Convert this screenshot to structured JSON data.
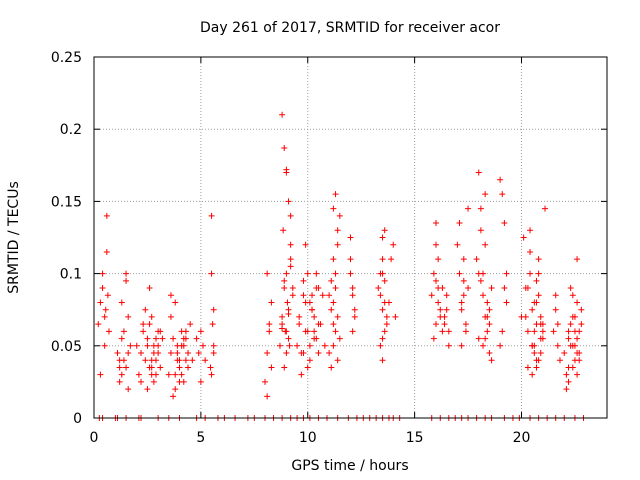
{
  "chart_data": {
    "type": "scatter",
    "title": "Day 261 of 2017, SRMTID for receiver acor",
    "xlabel": "GPS time / hours",
    "ylabel": "SRMTID / TECUs",
    "xlim": [
      0,
      24
    ],
    "ylim": [
      0,
      0.25
    ],
    "xticks": [
      0,
      5,
      10,
      15,
      20
    ],
    "xtick_labels": [
      "0",
      "5",
      "10",
      "15",
      "20"
    ],
    "yticks": [
      0,
      0.05,
      0.1,
      0.15,
      0.2,
      0.25
    ],
    "ytick_labels": [
      "0",
      "0.05",
      "0.1",
      "0.15",
      "0.2",
      "0.25"
    ],
    "grid": true,
    "marker": "+",
    "color": "#ff0000",
    "series": [
      {
        "name": "SRMTID",
        "x": [
          0.2,
          0.3,
          0.4,
          0.5,
          0.5,
          0.6,
          0.6,
          0.7,
          0.3,
          0.4,
          0.55,
          0.65,
          1.1,
          1.2,
          1.3,
          1.3,
          1.4,
          1.5,
          1.6,
          1.7,
          1.2,
          1.4,
          1.5,
          1.6,
          1.3,
          1.5,
          1.2,
          1.6,
          2.0,
          2.1,
          2.2,
          2.3,
          2.2,
          2.4,
          2.5,
          2.6,
          2.7,
          2.8,
          2.9,
          3.0,
          3.1,
          2.5,
          2.7,
          2.9,
          3.1,
          2.6,
          2.8,
          3.0,
          2.4,
          2.6,
          2.8,
          3.0,
          2.7,
          2.9,
          2.5,
          3.2,
          2.3,
          2.7,
          3.5,
          3.6,
          3.7,
          3.8,
          3.9,
          4.0,
          4.1,
          4.2,
          4.3,
          4.4,
          3.6,
          3.8,
          4.0,
          4.2,
          4.4,
          3.7,
          3.9,
          4.1,
          4.3,
          3.8,
          4.0,
          4.2,
          4.5,
          4.6,
          4.1,
          3.9,
          4.3,
          3.6,
          4.8,
          4.9,
          5.0,
          5.1,
          5.0,
          5.2,
          5.5,
          5.5,
          5.6,
          5.6,
          5.55,
          5.45,
          5.5,
          5.6,
          8.0,
          8.1,
          8.2,
          8.3,
          8.1,
          8.2,
          8.3,
          8.1,
          8.7,
          8.8,
          8.9,
          9.0,
          9.1,
          9.2,
          9.3,
          8.8,
          8.9,
          9.0,
          9.1,
          9.2,
          8.8,
          9.0,
          9.2,
          9.3,
          8.9,
          9.1,
          8.85,
          8.95,
          9.05,
          9.15,
          9.0,
          8.9,
          9.1,
          9.2,
          8.8,
          9.0,
          9.5,
          9.6,
          9.7,
          9.8,
          9.9,
          10.0,
          10.1,
          10.2,
          10.3,
          10.4,
          10.5,
          9.7,
          9.9,
          10.1,
          10.3,
          10.5,
          9.8,
          10.0,
          10.2,
          10.4,
          9.6,
          9.9,
          10.2,
          10.5,
          10.0,
          10.3,
          9.8,
          10.1,
          10.4,
          10.6,
          10.7,
          10.8,
          11.0,
          11.1,
          11.2,
          11.3,
          11.4,
          11.5,
          11.1,
          11.2,
          11.3,
          11.4,
          11.2,
          11.3,
          11.1,
          11.4,
          11.5,
          11.2,
          11.3,
          11.0,
          11.4,
          11.2,
          12.0,
          12.1,
          12.2,
          12.0,
          12.1,
          12.2,
          12.1,
          12.0,
          13.3,
          13.4,
          13.5,
          13.6,
          13.7,
          13.5,
          13.6,
          13.4,
          13.5,
          13.6,
          13.7,
          13.5,
          13.4,
          13.6,
          13.5,
          13.8,
          13.9,
          14.0,
          14.1,
          13.5,
          15.8,
          15.9,
          16.0,
          16.1,
          16.2,
          16.0,
          16.1,
          15.9,
          16.0,
          16.2,
          16.1,
          16.0,
          16.3,
          16.4,
          16.5,
          16.6,
          16.4,
          16.5,
          16.3,
          16.6,
          17.0,
          17.1,
          17.2,
          17.3,
          17.4,
          17.5,
          17.2,
          17.3,
          17.4,
          17.1,
          17.5,
          17.2,
          17.3,
          17.9,
          18.0,
          18.1,
          18.2,
          18.3,
          18.4,
          18.5,
          18.6,
          18.1,
          18.3,
          18.5,
          18.2,
          18.4,
          18.0,
          18.6,
          18.3,
          18.2,
          18.4,
          18.1,
          18.5,
          18.3,
          18.0,
          19.0,
          19.1,
          19.2,
          19.3,
          19.1,
          19.2,
          19.0,
          19.3,
          20.0,
          20.1,
          20.2,
          20.3,
          20.4,
          20.5,
          20.6,
          20.7,
          20.8,
          20.9,
          21.0,
          21.1,
          20.3,
          20.5,
          20.7,
          20.9,
          20.4,
          20.6,
          20.8,
          20.2,
          20.6,
          20.8,
          21.0,
          20.5,
          20.7,
          20.9,
          20.4,
          20.6,
          21.0,
          20.8,
          20.3,
          20.7,
          20.9,
          20.5,
          20.7,
          21.5,
          21.6,
          21.7,
          21.8,
          21.6,
          21.7,
          22.0,
          22.1,
          22.2,
          22.3,
          22.4,
          22.5,
          22.6,
          22.7,
          22.8,
          22.2,
          22.4,
          22.6,
          22.3,
          22.5,
          22.7,
          22.1,
          22.4,
          22.6,
          22.2,
          22.5,
          22.8,
          22.3,
          22.6,
          22.4,
          22.5,
          22.7,
          22.2,
          22.6,
          0.25,
          0.4,
          1.0,
          1.1,
          1.5,
          2.1,
          2.2,
          3.0,
          3.5,
          4.0,
          4.8,
          5.2,
          5.8,
          6.1,
          6.6,
          7.2,
          7.5,
          8.0,
          8.4,
          8.8,
          9.2,
          9.5,
          9.8,
          10.1,
          10.5,
          10.9,
          11.4,
          11.9,
          12.3,
          12.6,
          12.9,
          13.2,
          13.5,
          13.8,
          14.0,
          14.3,
          15.8,
          16.2,
          16.6,
          16.9,
          17.2,
          17.5,
          17.9,
          18.3,
          18.6,
          19.2,
          19.6,
          19.9,
          20.4,
          20.8,
          21.2,
          21.6,
          22.0,
          22.5,
          22.9
        ],
        "y": [
          0.065,
          0.08,
          0.1,
          0.07,
          0.05,
          0.115,
          0.14,
          0.06,
          0.03,
          0.09,
          0.075,
          0.085,
          0.045,
          0.035,
          0.03,
          0.055,
          0.04,
          0.095,
          0.07,
          0.05,
          0.025,
          0.06,
          0.035,
          0.02,
          0.08,
          0.1,
          0.04,
          0.045,
          0.05,
          0.03,
          0.045,
          0.06,
          0.025,
          0.04,
          0.055,
          0.035,
          0.07,
          0.05,
          0.03,
          0.045,
          0.06,
          0.02,
          0.04,
          0.055,
          0.035,
          0.065,
          0.025,
          0.05,
          0.075,
          0.09,
          0.045,
          0.06,
          0.035,
          0.04,
          0.05,
          0.055,
          0.065,
          0.03,
          0.03,
          0.045,
          0.055,
          0.02,
          0.04,
          0.035,
          0.05,
          0.025,
          0.06,
          0.045,
          0.07,
          0.03,
          0.04,
          0.055,
          0.035,
          0.015,
          0.045,
          0.06,
          0.04,
          0.08,
          0.025,
          0.05,
          0.065,
          0.04,
          0.03,
          0.05,
          0.055,
          0.085,
          0.055,
          0.045,
          0.06,
          0.05,
          0.025,
          0.04,
          0.1,
          0.14,
          0.075,
          0.05,
          0.065,
          0.035,
          0.03,
          0.045,
          0.025,
          0.015,
          0.065,
          0.08,
          0.1,
          0.06,
          0.035,
          0.045,
          0.05,
          0.07,
          0.09,
          0.06,
          0.075,
          0.11,
          0.085,
          0.21,
          0.187,
          0.17,
          0.15,
          0.12,
          0.065,
          0.1,
          0.14,
          0.09,
          0.035,
          0.055,
          0.13,
          0.06,
          0.08,
          0.05,
          0.045,
          0.095,
          0.072,
          0.105,
          0.062,
          0.172,
          0.05,
          0.07,
          0.045,
          0.085,
          0.06,
          0.1,
          0.04,
          0.075,
          0.055,
          0.09,
          0.065,
          0.03,
          0.08,
          0.05,
          0.07,
          0.045,
          0.095,
          0.06,
          0.085,
          0.055,
          0.065,
          0.12,
          0.075,
          0.09,
          0.035,
          0.06,
          0.045,
          0.08,
          0.1,
          0.065,
          0.085,
          0.05,
          0.045,
          0.075,
          0.11,
          0.155,
          0.13,
          0.14,
          0.095,
          0.08,
          0.06,
          0.12,
          0.05,
          0.1,
          0.035,
          0.07,
          0.055,
          0.145,
          0.09,
          0.085,
          0.04,
          0.065,
          0.1,
          0.085,
          0.07,
          0.125,
          0.09,
          0.075,
          0.06,
          0.11,
          0.09,
          0.1,
          0.125,
          0.08,
          0.07,
          0.11,
          0.06,
          0.05,
          0.075,
          0.095,
          0.065,
          0.04,
          0.085,
          0.13,
          0.1,
          0.08,
          0.11,
          0.12,
          0.07,
          0.055,
          0.085,
          0.1,
          0.065,
          0.09,
          0.075,
          0.135,
          0.11,
          0.055,
          0.12,
          0.07,
          0.08,
          0.095,
          0.06,
          0.07,
          0.085,
          0.05,
          0.065,
          0.075,
          0.09,
          0.06,
          0.12,
          0.1,
          0.08,
          0.095,
          0.065,
          0.145,
          0.075,
          0.11,
          0.06,
          0.135,
          0.09,
          0.05,
          0.085,
          0.11,
          0.1,
          0.145,
          0.085,
          0.12,
          0.07,
          0.065,
          0.09,
          0.13,
          0.055,
          0.075,
          0.1,
          0.06,
          0.17,
          0.04,
          0.155,
          0.05,
          0.08,
          0.095,
          0.045,
          0.07,
          0.055,
          0.165,
          0.155,
          0.135,
          0.1,
          0.06,
          0.09,
          0.05,
          0.08,
          0.07,
          0.125,
          0.09,
          0.06,
          0.1,
          0.05,
          0.08,
          0.04,
          0.11,
          0.065,
          0.055,
          0.145,
          0.035,
          0.075,
          0.095,
          0.045,
          0.13,
          0.06,
          0.085,
          0.07,
          0.05,
          0.04,
          0.065,
          0.03,
          0.08,
          0.055,
          0.115,
          0.045,
          0.06,
          0.1,
          0.09,
          0.035,
          0.07,
          0.05,
          0.065,
          0.06,
          0.075,
          0.05,
          0.04,
          0.085,
          0.065,
          0.045,
          0.03,
          0.06,
          0.05,
          0.035,
          0.07,
          0.055,
          0.04,
          0.065,
          0.025,
          0.05,
          0.08,
          0.09,
          0.06,
          0.045,
          0.02,
          0.07,
          0.11,
          0.055,
          0.04,
          0.075,
          0.065,
          0.03,
          0.085,
          0.05,
          0.06,
          0.035,
          0.045,
          0,
          0,
          0,
          0,
          0,
          0,
          0,
          0,
          0,
          0,
          0,
          0,
          0,
          0,
          0,
          0,
          0,
          0,
          0,
          0,
          0,
          0,
          0,
          0,
          0,
          0,
          0,
          0,
          0,
          0,
          0,
          0,
          0,
          0,
          0,
          0,
          0,
          0,
          0,
          0,
          0,
          0,
          0,
          0,
          0,
          0,
          0,
          0,
          0,
          0,
          0,
          0,
          0,
          0,
          0
        ]
      }
    ]
  }
}
